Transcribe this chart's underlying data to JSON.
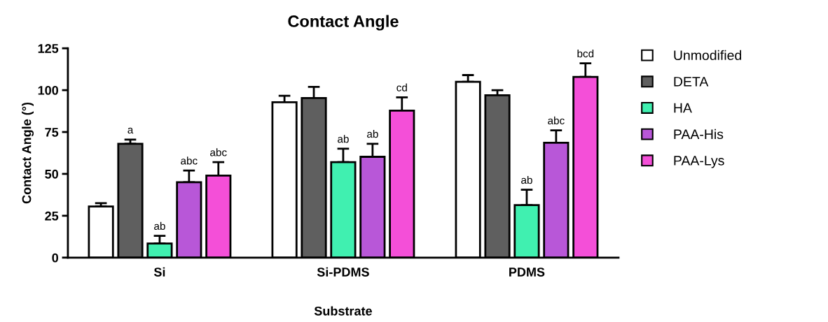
{
  "chart_data": {
    "type": "bar",
    "title": "Contact Angle",
    "xlabel": "Substrate",
    "ylabel": "Contact Angle (°)",
    "categories": [
      "Si",
      "Si-PDMS",
      "PDMS"
    ],
    "series": [
      {
        "name": "Unmodified",
        "color": "#ffffff",
        "values": [
          30.5,
          92.8,
          105
        ],
        "errors": [
          [
            30.5,
            32.5
          ],
          [
            92.8,
            96.6
          ],
          [
            105,
            109
          ]
        ]
      },
      {
        "name": "DETA",
        "color": "#5f5f5f",
        "values": [
          68,
          95.3,
          97
        ],
        "errors": [
          [
            68,
            70.5
          ],
          [
            95.3,
            102
          ],
          [
            97,
            100
          ]
        ],
        "value_labels": [
          "a",
          null,
          null
        ]
      },
      {
        "name": "HA",
        "color": "#40f0b0",
        "values": [
          8.4,
          57,
          31.4
        ],
        "errors": [
          [
            8.4,
            13
          ],
          [
            57,
            65
          ],
          [
            31.4,
            40.5
          ]
        ],
        "value_labels": [
          "ab",
          "ab",
          "ab"
        ]
      },
      {
        "name": "PAA-His",
        "color": "#b857d8",
        "values": [
          45,
          60.2,
          68.6
        ],
        "errors": [
          [
            45,
            52
          ],
          [
            60.2,
            68
          ],
          [
            68.6,
            76
          ]
        ],
        "value_labels": [
          "abc",
          "ab",
          "abc"
        ]
      },
      {
        "name": "PAA-Lys",
        "color": "#f44fd8",
        "values": [
          49,
          87.8,
          107.9
        ],
        "errors": [
          [
            49,
            57
          ],
          [
            87.8,
            95.7
          ],
          [
            107.9,
            116
          ]
        ],
        "value_labels": [
          "abc",
          "cd",
          "bcd"
        ]
      }
    ],
    "ylim": [
      0,
      125
    ],
    "yticks": [
      0,
      25,
      50,
      75,
      100,
      125
    ],
    "grid": false,
    "legend": "right"
  }
}
